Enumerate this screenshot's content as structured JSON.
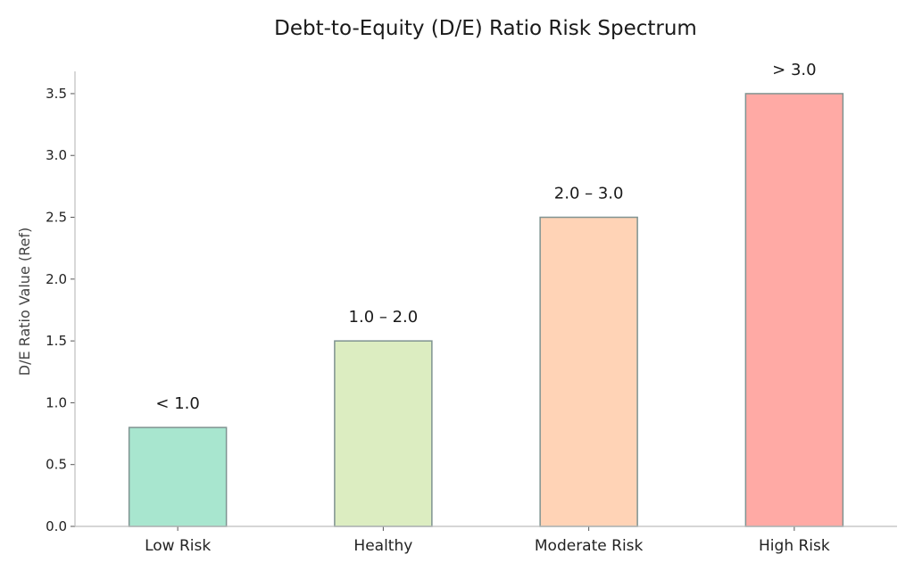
{
  "chart_data": {
    "type": "bar",
    "title": "Debt-to-Equity (D/E) Ratio Risk Spectrum",
    "ylabel": "D/E Ratio Value (Ref)",
    "xlabel": "",
    "ylim": [
      0,
      3.68
    ],
    "yticks": [
      0.0,
      0.5,
      1.0,
      1.5,
      2.0,
      2.5,
      3.0,
      3.5
    ],
    "ytick_labels": [
      "0.0",
      "0.5",
      "1.0",
      "1.5",
      "2.0",
      "2.5",
      "3.0",
      "3.5"
    ],
    "categories": [
      "Low Risk",
      "Healthy",
      "Moderate Risk",
      "High Risk"
    ],
    "values": [
      0.8,
      1.5,
      2.5,
      3.5
    ],
    "data_labels": [
      "< 1.0",
      "1.0 – 2.0",
      "2.0 – 3.0",
      "> 3.0"
    ],
    "colors": [
      "#a8e6cf",
      "#dcedc1",
      "#ffd3b6",
      "#ffaaa5"
    ],
    "edge_color": "#7f9391",
    "grid": false,
    "legend": "none"
  }
}
